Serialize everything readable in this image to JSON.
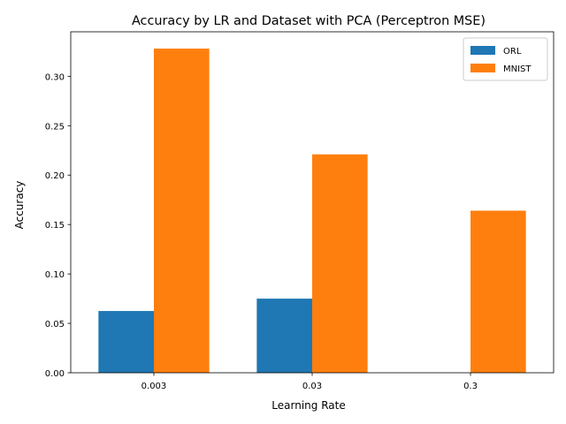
{
  "chart_data": {
    "type": "bar",
    "title": "Accuracy by LR and Dataset with PCA (Perceptron MSE)",
    "xlabel": "Learning Rate",
    "ylabel": "Accuracy",
    "categories": [
      "0.003",
      "0.03",
      "0.3"
    ],
    "series": [
      {
        "name": "ORL",
        "color": "#1f77b4",
        "values": [
          0.0625,
          0.075,
          0.0
        ]
      },
      {
        "name": "MNIST",
        "color": "#ff7f0e",
        "values": [
          0.328,
          0.221,
          0.164
        ]
      }
    ],
    "ylim": [
      0,
      0.345
    ],
    "yticks": [
      "0.00",
      "0.05",
      "0.10",
      "0.15",
      "0.20",
      "0.25",
      "0.30"
    ],
    "legend_position": "top-right",
    "grid": false
  }
}
